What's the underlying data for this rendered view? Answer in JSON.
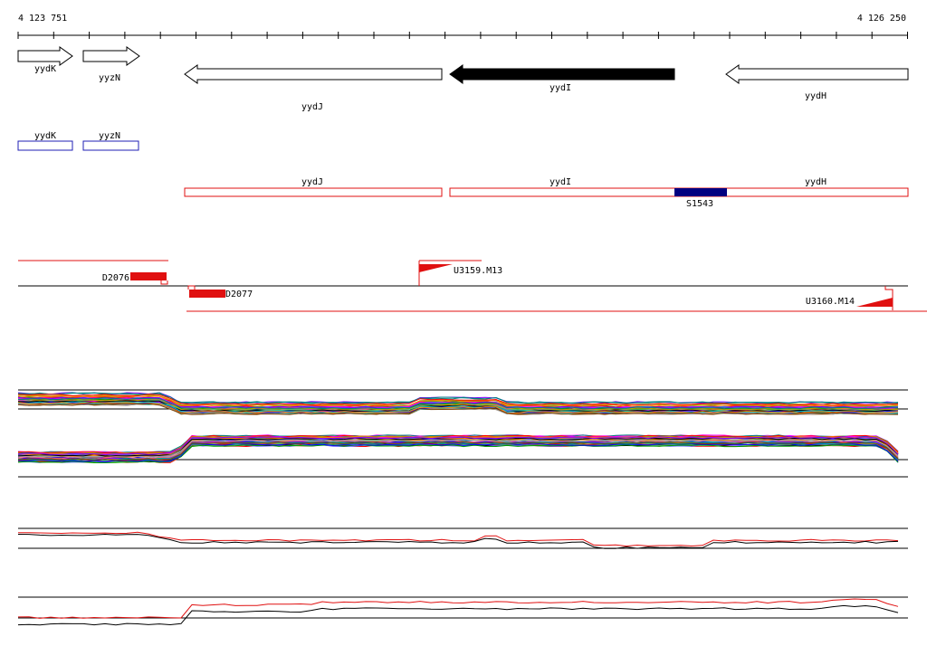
{
  "coords": {
    "start": "4 123 751",
    "end": "4 126 250"
  },
  "genes": [
    {
      "name": "yydK",
      "dir": "right",
      "fill": "#ffffff"
    },
    {
      "name": "yyzN",
      "dir": "right",
      "fill": "#ffffff"
    },
    {
      "name": "yydJ",
      "dir": "left",
      "fill": "#ffffff"
    },
    {
      "name": "yydI",
      "dir": "left",
      "fill": "#000000"
    },
    {
      "name": "yydH",
      "dir": "left",
      "fill": "#ffffff"
    }
  ],
  "gene_boxes_blue": [
    "yydK",
    "yyzN"
  ],
  "gene_boxes_red": [
    "yydJ",
    "yydI",
    "yydH"
  ],
  "block_label": "S1543",
  "features": {
    "d2076": "D2076",
    "d2077": "D2077",
    "u3159": "U3159.M13",
    "u3160": "U3160.M14"
  },
  "colors": {
    "blue": "#1f1fb4",
    "red": "#e01010",
    "navy": "#000080",
    "black": "#000000",
    "palette": [
      "#ff0000",
      "#00a000",
      "#0000ff",
      "#ff00ff",
      "#00c0c0",
      "#c0a000",
      "#ff8000",
      "#8000ff",
      "#008080",
      "#804000",
      "#ff6080",
      "#60c060",
      "#6060ff",
      "#a0a0a0",
      "#000000"
    ]
  }
}
